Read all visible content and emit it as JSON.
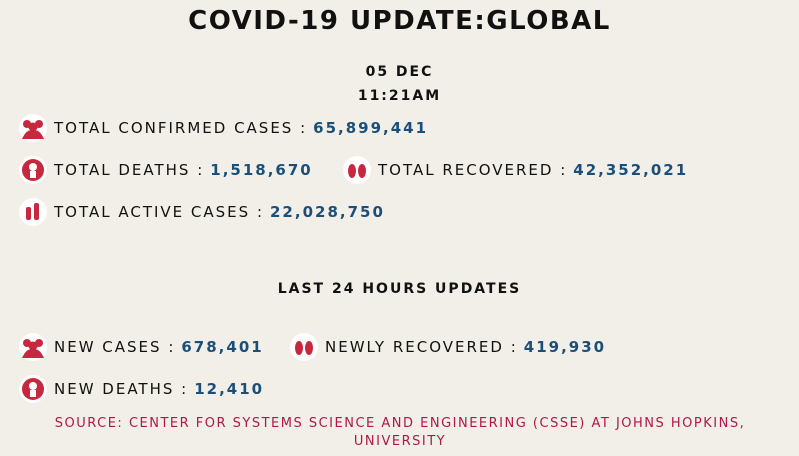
{
  "header": {
    "title": "COVID-19 UPDATE:GLOBAL",
    "date": "05 DEC",
    "time": "11:21AM"
  },
  "global": {
    "stats": [
      {
        "label": "TOTAL CONFIRMED CASES :",
        "value": "65,899,441"
      },
      {
        "label": "TOTAL DEATHS :",
        "value": "1,518,670"
      },
      {
        "label": "TOTAL RECOVERED :",
        "value": "42,352,021"
      },
      {
        "label": "TOTAL ACTIVE CASES :",
        "value": "22,028,750"
      }
    ]
  },
  "last_24_hours": {
    "title": "LAST 24 HOURS UPDATES",
    "stats": [
      {
        "label": "NEW CASES :",
        "value": "678,401"
      },
      {
        "label": "NEWLY RECOVERED :",
        "value": "419,930"
      },
      {
        "label": "NEW DEATHS :",
        "value": "12,410"
      }
    ]
  },
  "source": "SOURCE: CENTER FOR SYSTEMS SCIENCE AND ENGINEERING (CSSE) AT JOHNS HOPKINS, UNIVERSITY"
}
